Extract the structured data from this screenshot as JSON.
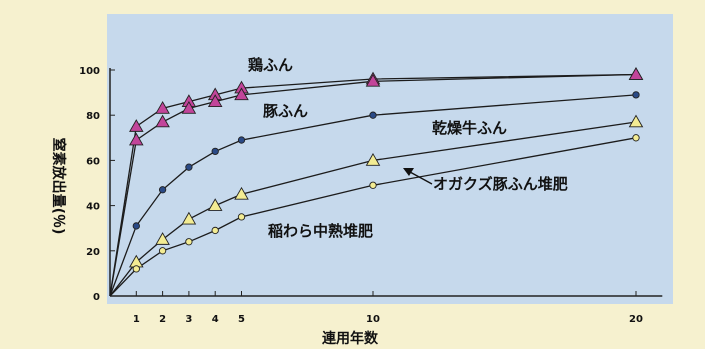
{
  "chart_data": {
    "type": "line",
    "title": "",
    "xlabel": "連用年数",
    "ylabel": "窒素放出量(％)",
    "xlim": [
      0,
      21
    ],
    "ylim": [
      0,
      100
    ],
    "x_ticks": [
      1,
      2,
      3,
      4,
      5,
      10,
      20
    ],
    "y_ticks": [
      0,
      20,
      40,
      60,
      80,
      100
    ],
    "y_tick_labels": [
      "0",
      "20",
      "40",
      "60",
      "80",
      "100"
    ],
    "grid": false,
    "series": [
      {
        "name": "鶏ふん",
        "marker": "triangle",
        "marker_color": "#c2459a",
        "x": [
          1,
          2,
          3,
          4,
          5,
          10,
          20
        ],
        "y": [
          75,
          83,
          86,
          89,
          92,
          96,
          98
        ]
      },
      {
        "name": "豚ふん",
        "marker": "triangle",
        "marker_color": "#c2459a",
        "x": [
          1,
          2,
          3,
          4,
          5,
          10,
          20
        ],
        "y": [
          69,
          77,
          83,
          86,
          89,
          95,
          98
        ]
      },
      {
        "name": "乾燥牛ふん",
        "marker": "circle",
        "marker_color": "#2a4a86",
        "x": [
          1,
          2,
          3,
          4,
          5,
          10,
          20
        ],
        "y": [
          31,
          47,
          57,
          64,
          69,
          80,
          89
        ]
      },
      {
        "name": "オガクズ豚ふん堆肥",
        "marker": "triangle",
        "marker_color": "#f3ec93",
        "x": [
          1,
          2,
          3,
          4,
          5,
          10,
          20
        ],
        "y": [
          15,
          25,
          34,
          40,
          45,
          60,
          77
        ]
      },
      {
        "name": "稲わら中熟堆肥",
        "marker": "circle",
        "marker_color": "#f3ec93",
        "x": [
          1,
          2,
          3,
          4,
          5,
          10,
          20
        ],
        "y": [
          12,
          20,
          24,
          29,
          35,
          49,
          70
        ]
      }
    ]
  }
}
